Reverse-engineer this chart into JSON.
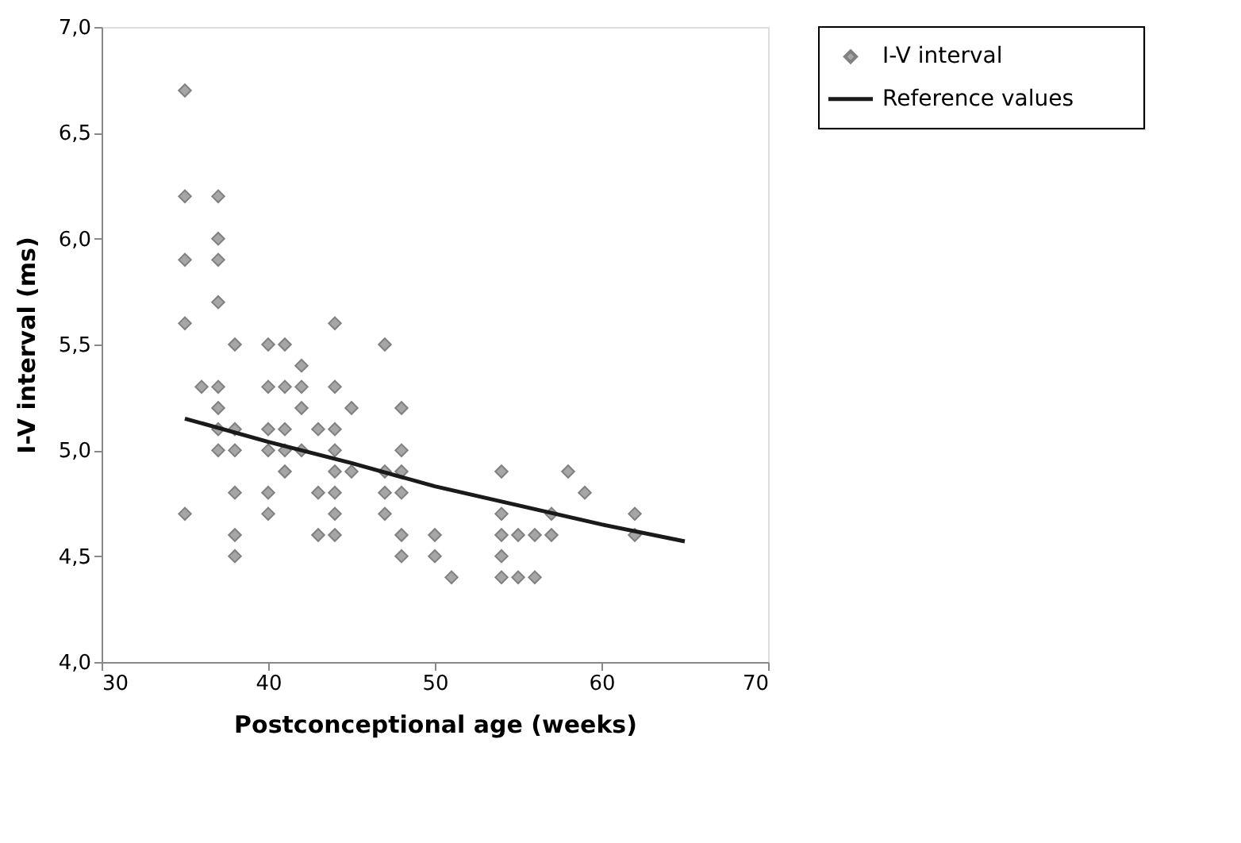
{
  "chart_data": {
    "type": "scatter",
    "xlabel": "Postconceptional age (weeks)",
    "ylabel": "I-V interval (ms)",
    "xlim": [
      30,
      70
    ],
    "xticks": [
      30,
      40,
      50,
      60,
      70
    ],
    "ylim": [
      4.0,
      7.0
    ],
    "yticks": [
      {
        "value": 4.0,
        "label": "4,0"
      },
      {
        "value": 4.5,
        "label": "4,5"
      },
      {
        "value": 5.0,
        "label": "5,0"
      },
      {
        "value": 5.5,
        "label": "5,5"
      },
      {
        "value": 6.0,
        "label": "6,0"
      },
      {
        "value": 6.5,
        "label": "6,5"
      },
      {
        "value": 7.0,
        "label": "7,0"
      }
    ],
    "grid": false,
    "legend": "right",
    "series": [
      {
        "name": "I-V interval",
        "marker": "diamond",
        "color": "#a6a6a6",
        "x": [
          35,
          35,
          35,
          35,
          35,
          36,
          37,
          37,
          37,
          37,
          37,
          37,
          37,
          37,
          38,
          38,
          38,
          38,
          38,
          38,
          40,
          40,
          40,
          40,
          40,
          40,
          41,
          41,
          41,
          41,
          41,
          42,
          42,
          42,
          42,
          43,
          43,
          43,
          44,
          44,
          44,
          44,
          44,
          44,
          44,
          44,
          45,
          45,
          47,
          47,
          47,
          47,
          48,
          48,
          48,
          48,
          48,
          48,
          50,
          50,
          51,
          54,
          54,
          54,
          54,
          54,
          55,
          55,
          56,
          56,
          57,
          57,
          58,
          59,
          62,
          62
        ],
        "values": [
          6.7,
          6.2,
          5.9,
          5.6,
          4.7,
          5.3,
          6.2,
          6.0,
          5.9,
          5.7,
          5.3,
          5.2,
          5.1,
          5.0,
          5.5,
          5.1,
          5.0,
          4.8,
          4.6,
          4.5,
          5.5,
          5.3,
          5.1,
          5.0,
          4.8,
          4.7,
          5.5,
          5.3,
          5.1,
          5.0,
          4.9,
          5.4,
          5.3,
          5.2,
          5.0,
          5.1,
          4.8,
          4.6,
          5.6,
          5.3,
          5.1,
          5.0,
          4.9,
          4.8,
          4.7,
          4.6,
          5.2,
          4.9,
          5.5,
          4.9,
          4.8,
          4.7,
          5.2,
          5.0,
          4.9,
          4.8,
          4.6,
          4.5,
          4.6,
          4.5,
          4.4,
          4.9,
          4.7,
          4.6,
          4.5,
          4.4,
          4.6,
          4.4,
          4.6,
          4.4,
          4.7,
          4.6,
          4.9,
          4.8,
          4.7,
          4.6
        ]
      },
      {
        "name": "Reference values",
        "type": "line",
        "color": "#1a1a1a",
        "line_style": "solid",
        "x": [
          35,
          40,
          45,
          50,
          55,
          60,
          65
        ],
        "values": [
          5.15,
          5.04,
          4.94,
          4.83,
          4.74,
          4.65,
          4.57
        ]
      }
    ]
  }
}
